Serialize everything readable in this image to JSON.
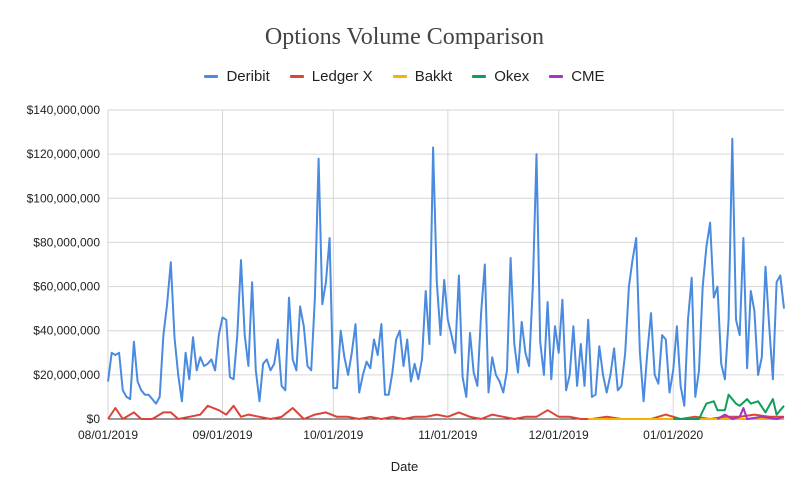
{
  "chart_data": {
    "type": "line",
    "title": "Options Volume Comparison",
    "xlabel": "Date",
    "ylabel": "",
    "x_start": "08/01/2019",
    "x_end": "01/31/2020",
    "ylim": [
      0,
      140000000
    ],
    "y_ticks": [
      0,
      20000000,
      40000000,
      60000000,
      80000000,
      100000000,
      120000000,
      140000000
    ],
    "y_tick_labels": [
      "$0",
      "$20,000,000",
      "$40,000,000",
      "$60,000,000",
      "$80,000,000",
      "$100,000,000",
      "$120,000,000",
      "$140,000,000"
    ],
    "x_ticks": [
      "08/01/2019",
      "09/01/2019",
      "10/01/2019",
      "11/01/2019",
      "12/01/2019",
      "01/01/2020"
    ],
    "legend_position": "top",
    "grid": true,
    "series": [
      {
        "name": "Deribit",
        "color": "#4a8be0",
        "x": [
          "08/01/2019",
          "08/02/2019",
          "08/03/2019",
          "08/04/2019",
          "08/05/2019",
          "08/06/2019",
          "08/07/2019",
          "08/08/2019",
          "08/09/2019",
          "08/10/2019",
          "08/11/2019",
          "08/12/2019",
          "08/13/2019",
          "08/14/2019",
          "08/15/2019",
          "08/16/2019",
          "08/17/2019",
          "08/18/2019",
          "08/19/2019",
          "08/20/2019",
          "08/21/2019",
          "08/22/2019",
          "08/23/2019",
          "08/24/2019",
          "08/25/2019",
          "08/26/2019",
          "08/27/2019",
          "08/28/2019",
          "08/29/2019",
          "08/30/2019",
          "08/31/2019",
          "09/01/2019",
          "09/02/2019",
          "09/03/2019",
          "09/04/2019",
          "09/05/2019",
          "09/06/2019",
          "09/07/2019",
          "09/08/2019",
          "09/09/2019",
          "09/10/2019",
          "09/11/2019",
          "09/12/2019",
          "09/13/2019",
          "09/14/2019",
          "09/15/2019",
          "09/16/2019",
          "09/17/2019",
          "09/18/2019",
          "09/19/2019",
          "09/20/2019",
          "09/21/2019",
          "09/22/2019",
          "09/23/2019",
          "09/24/2019",
          "09/25/2019",
          "09/26/2019",
          "09/27/2019",
          "09/28/2019",
          "09/29/2019",
          "09/30/2019",
          "10/01/2019",
          "10/02/2019",
          "10/03/2019",
          "10/04/2019",
          "10/05/2019",
          "10/06/2019",
          "10/07/2019",
          "10/08/2019",
          "10/09/2019",
          "10/10/2019",
          "10/11/2019",
          "10/12/2019",
          "10/13/2019",
          "10/14/2019",
          "10/15/2019",
          "10/16/2019",
          "10/17/2019",
          "10/18/2019",
          "10/19/2019",
          "10/20/2019",
          "10/21/2019",
          "10/22/2019",
          "10/23/2019",
          "10/24/2019",
          "10/25/2019",
          "10/26/2019",
          "10/27/2019",
          "10/28/2019",
          "10/29/2019",
          "10/30/2019",
          "10/31/2019",
          "11/01/2019",
          "11/02/2019",
          "11/03/2019",
          "11/04/2019",
          "11/05/2019",
          "11/06/2019",
          "11/07/2019",
          "11/08/2019",
          "11/09/2019",
          "11/10/2019",
          "11/11/2019",
          "11/12/2019",
          "11/13/2019",
          "11/14/2019",
          "11/15/2019",
          "11/16/2019",
          "11/17/2019",
          "11/18/2019",
          "11/19/2019",
          "11/20/2019",
          "11/21/2019",
          "11/22/2019",
          "11/23/2019",
          "11/24/2019",
          "11/25/2019",
          "11/26/2019",
          "11/27/2019",
          "11/28/2019",
          "11/29/2019",
          "11/30/2019",
          "12/01/2019",
          "12/02/2019",
          "12/03/2019",
          "12/04/2019",
          "12/05/2019",
          "12/06/2019",
          "12/07/2019",
          "12/08/2019",
          "12/09/2019",
          "12/10/2019",
          "12/11/2019",
          "12/12/2019",
          "12/13/2019",
          "12/14/2019",
          "12/15/2019",
          "12/16/2019",
          "12/17/2019",
          "12/18/2019",
          "12/19/2019",
          "12/20/2019",
          "12/21/2019",
          "12/22/2019",
          "12/23/2019",
          "12/24/2019",
          "12/25/2019",
          "12/26/2019",
          "12/27/2019",
          "12/28/2019",
          "12/29/2019",
          "12/30/2019",
          "12/31/2019",
          "01/01/2020",
          "01/02/2020",
          "01/03/2020",
          "01/04/2020",
          "01/05/2020",
          "01/06/2020",
          "01/07/2020",
          "01/08/2020",
          "01/09/2020",
          "01/10/2020",
          "01/11/2020",
          "01/12/2020",
          "01/13/2020",
          "01/14/2020",
          "01/15/2020",
          "01/16/2020",
          "01/17/2020",
          "01/18/2020",
          "01/19/2020",
          "01/20/2020",
          "01/21/2020",
          "01/22/2020",
          "01/23/2020",
          "01/24/2020",
          "01/25/2020",
          "01/26/2020",
          "01/27/2020",
          "01/28/2020",
          "01/29/2020",
          "01/30/2020",
          "01/31/2020"
        ],
        "values": [
          17000000,
          30000000,
          29000000,
          30000000,
          13000000,
          10000000,
          9000000,
          35000000,
          17000000,
          13000000,
          11000000,
          11000000,
          9000000,
          7000000,
          10000000,
          38000000,
          52000000,
          71000000,
          37000000,
          20000000,
          8000000,
          30000000,
          18000000,
          37000000,
          22000000,
          28000000,
          24000000,
          25000000,
          27000000,
          22000000,
          38000000,
          46000000,
          45000000,
          19000000,
          18000000,
          38000000,
          72000000,
          38000000,
          24000000,
          62000000,
          22000000,
          8000000,
          25000000,
          27000000,
          22000000,
          25000000,
          36000000,
          15000000,
          13000000,
          55000000,
          27000000,
          22000000,
          51000000,
          42000000,
          24000000,
          22000000,
          55000000,
          118000000,
          52000000,
          62000000,
          82000000,
          14000000,
          14000000,
          40000000,
          28000000,
          20000000,
          30000000,
          43000000,
          12000000,
          20000000,
          26000000,
          23000000,
          36000000,
          29000000,
          43000000,
          11000000,
          11000000,
          21000000,
          36000000,
          40000000,
          24000000,
          36000000,
          17000000,
          25000000,
          18000000,
          27000000,
          58000000,
          34000000,
          123000000,
          62000000,
          38000000,
          63000000,
          45000000,
          38000000,
          30000000,
          65000000,
          19000000,
          10000000,
          39000000,
          21000000,
          15000000,
          48000000,
          70000000,
          12000000,
          28000000,
          20000000,
          17000000,
          12000000,
          22000000,
          73000000,
          34000000,
          21000000,
          44000000,
          30000000,
          24000000,
          60000000,
          120000000,
          35000000,
          20000000,
          53000000,
          18000000,
          42000000,
          30000000,
          54000000,
          13000000,
          20000000,
          42000000,
          15000000,
          34000000,
          15000000,
          45000000,
          10000000,
          11000000,
          33000000,
          20000000,
          12000000,
          20000000,
          32000000,
          13000000,
          15000000,
          30000000,
          60000000,
          72000000,
          82000000,
          30000000,
          8000000,
          30000000,
          48000000,
          20000000,
          16000000,
          38000000,
          36000000,
          12000000,
          22000000,
          42000000,
          15000000,
          6000000,
          45000000,
          64000000,
          10000000,
          22000000,
          60000000,
          78000000,
          89000000,
          55000000,
          60000000,
          25000000,
          18000000,
          45000000,
          127000000,
          45000000,
          38000000,
          82000000,
          23000000,
          58000000,
          49000000,
          20000000,
          28000000,
          69000000,
          42000000,
          18000000,
          62000000,
          65000000,
          50000000
        ]
      },
      {
        "name": "Ledger X",
        "color": "#db4437",
        "x": [
          "08/01/2019",
          "08/03/2019",
          "08/05/2019",
          "08/08/2019",
          "08/10/2019",
          "08/13/2019",
          "08/16/2019",
          "08/18/2019",
          "08/20/2019",
          "08/23/2019",
          "08/26/2019",
          "08/28/2019",
          "08/31/2019",
          "09/02/2019",
          "09/04/2019",
          "09/06/2019",
          "09/08/2019",
          "09/11/2019",
          "09/14/2019",
          "09/17/2019",
          "09/20/2019",
          "09/23/2019",
          "09/26/2019",
          "09/29/2019",
          "10/02/2019",
          "10/05/2019",
          "10/08/2019",
          "10/11/2019",
          "10/14/2019",
          "10/17/2019",
          "10/20/2019",
          "10/23/2019",
          "10/26/2019",
          "10/29/2019",
          "11/01/2019",
          "11/04/2019",
          "11/07/2019",
          "11/10/2019",
          "11/13/2019",
          "11/16/2019",
          "11/19/2019",
          "11/22/2019",
          "11/25/2019",
          "11/28/2019",
          "12/01/2019",
          "12/04/2019",
          "12/07/2019",
          "12/10/2019",
          "12/14/2019",
          "12/18/2019",
          "12/22/2019",
          "12/26/2019",
          "12/30/2019",
          "01/03/2020",
          "01/07/2020",
          "01/11/2020",
          "01/15/2020",
          "01/19/2020",
          "01/23/2020",
          "01/27/2020",
          "01/31/2020"
        ],
        "values": [
          0,
          5000000,
          0,
          3000000,
          0,
          0,
          3000000,
          3000000,
          0,
          1000000,
          2000000,
          6000000,
          4000000,
          2000000,
          6000000,
          1000000,
          2000000,
          1000000,
          0,
          1000000,
          5000000,
          0,
          2000000,
          3000000,
          1000000,
          1000000,
          0,
          1000000,
          0,
          1000000,
          0,
          1000000,
          1000000,
          2000000,
          1000000,
          3000000,
          1000000,
          0,
          2000000,
          1000000,
          0,
          1000000,
          1000000,
          4000000,
          1000000,
          1000000,
          0,
          0,
          1000000,
          0,
          0,
          0,
          2000000,
          0,
          1000000,
          0,
          1000000,
          1000000,
          2000000,
          1000000,
          1000000
        ]
      },
      {
        "name": "Bakkt",
        "color": "#f4b400",
        "x": [
          "12/09/2019",
          "12/31/2019",
          "01/31/2020"
        ],
        "values": [
          0,
          0,
          0
        ]
      },
      {
        "name": "Okex",
        "color": "#0f9d58",
        "x": [
          "01/01/2020",
          "01/08/2020",
          "01/10/2020",
          "01/12/2020",
          "01/13/2020",
          "01/15/2020",
          "01/16/2020",
          "01/18/2020",
          "01/19/2020",
          "01/21/2020",
          "01/22/2020",
          "01/24/2020",
          "01/26/2020",
          "01/28/2020",
          "01/29/2020",
          "01/31/2020"
        ],
        "values": [
          0,
          0,
          7000000,
          8000000,
          4000000,
          4000000,
          11000000,
          7000000,
          6000000,
          9000000,
          7000000,
          8000000,
          3000000,
          9000000,
          2000000,
          6000000
        ]
      },
      {
        "name": "CME",
        "color": "#ab30c4",
        "x": [
          "01/13/2020",
          "01/15/2020",
          "01/17/2020",
          "01/19/2020",
          "01/20/2020",
          "01/21/2020",
          "01/25/2020",
          "01/29/2020",
          "01/31/2020"
        ],
        "values": [
          0,
          2000000,
          0,
          1000000,
          5000000,
          0,
          1000000,
          0,
          1000000
        ]
      }
    ]
  }
}
